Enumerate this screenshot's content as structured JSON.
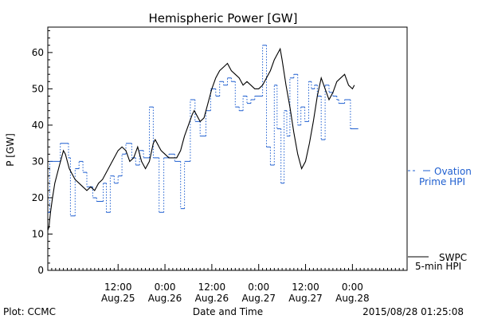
{
  "chart_data": {
    "type": "line",
    "title": "Hemispheric Power [GW]",
    "xlabel": "Date and Time",
    "ylabel": "P [GW]",
    "ylim": [
      0,
      67
    ],
    "yticks": [
      0,
      10,
      20,
      30,
      40,
      50,
      60
    ],
    "xlim": [
      0,
      92
    ],
    "x_unit": "hours since Aug.24 18:00",
    "xticks": [
      {
        "x": 18,
        "time": "12:00",
        "date": "Aug.25"
      },
      {
        "x": 30,
        "time": "0:00",
        "date": "Aug.26"
      },
      {
        "x": 42,
        "time": "12:00",
        "date": "Aug.26"
      },
      {
        "x": 54,
        "time": "0:00",
        "date": "Aug.27"
      },
      {
        "x": 66,
        "time": "12:00",
        "date": "Aug.27"
      },
      {
        "x": 78,
        "time": "0:00",
        "date": "Aug.28"
      }
    ],
    "grid": false,
    "footer_left": "Plot: CCMC",
    "footer_right": "2015/08/28 01:25:08",
    "series": [
      {
        "name": "Ovation Prime HPI",
        "legend_lines": [
          "Ovation",
          "Prime HPI"
        ],
        "color": "#1f5fd0",
        "style": "dotted-step",
        "x": [
          0,
          0.5,
          3.2,
          5.3,
          5.8,
          7.0,
          8.0,
          9.0,
          10.0,
          11.5,
          12.5,
          14.2,
          15.0,
          16.0,
          17.0,
          18.0,
          19.0,
          20.0,
          21.5,
          22.5,
          23.5,
          24.5,
          26.0,
          27.0,
          28.5,
          29.7,
          31.0,
          32.5,
          34.0,
          35.0,
          36.5,
          37.7,
          39.0,
          40.5,
          41.7,
          43.0,
          44.0,
          45.0,
          46.0,
          47.0,
          48.0,
          49.0,
          50.0,
          51.0,
          52.0,
          53.0,
          54.0,
          55.0,
          56.0,
          57.0,
          58.0,
          58.7,
          59.7,
          60.5,
          61.2,
          62.0,
          63.0,
          64.0,
          64.8,
          65.8,
          66.8,
          67.5,
          68.3,
          69.0,
          70.0,
          71.0,
          72.0,
          73.0,
          74.0,
          74.5,
          76.0,
          77.5,
          78.5
        ],
        "y": [
          16,
          30,
          35,
          31,
          15,
          28,
          30,
          27,
          23,
          20,
          19,
          24,
          16,
          26,
          24,
          26,
          32,
          35,
          31,
          29,
          33,
          31,
          45,
          31,
          16,
          31,
          32,
          30,
          17,
          30,
          47,
          41,
          37,
          44,
          50,
          48,
          52,
          51,
          53,
          52,
          45,
          44,
          48,
          46,
          47,
          48,
          48,
          62,
          34,
          29,
          51,
          39,
          24,
          44,
          37,
          53,
          54,
          40,
          45,
          41,
          52,
          50,
          51,
          48,
          36,
          51,
          49,
          48,
          47,
          46,
          47,
          39,
          39
        ]
      },
      {
        "name": "SWPC 5-min HPI",
        "legend_lines": [
          "SWPC",
          "5-min HPI"
        ],
        "color": "#000000",
        "style": "solid",
        "x": [
          0.0,
          0.3,
          0.7,
          1.2,
          1.8,
          2.5,
          3.0,
          3.5,
          4.0,
          4.5,
          5.0,
          5.5,
          6.0,
          7.0,
          8.0,
          9.0,
          10.0,
          11.0,
          12.0,
          13.0,
          14.0,
          15.0,
          16.0,
          17.0,
          18.0,
          19.0,
          20.0,
          21.0,
          22.0,
          23.0,
          24.0,
          25.0,
          26.0,
          27.0,
          27.5,
          28.0,
          28.5,
          29.0,
          30.0,
          31.0,
          32.0,
          33.0,
          34.0,
          34.5,
          35.0,
          36.0,
          37.0,
          37.5,
          38.0,
          39.0,
          40.0,
          41.0,
          42.0,
          43.0,
          44.0,
          45.0,
          46.0,
          47.0,
          48.0,
          49.0,
          50.0,
          51.0,
          52.0,
          53.0,
          54.0,
          55.0,
          56.0,
          57.0,
          58.0,
          59.0,
          59.5,
          60.0,
          61.0,
          62.0,
          63.0,
          64.0,
          65.0,
          66.0,
          67.0,
          68.0,
          69.0,
          70.0,
          71.0,
          72.0,
          73.0,
          74.0,
          75.0,
          76.0,
          77.0,
          78.0,
          78.5
        ],
        "y": [
          11,
          12,
          16,
          20,
          24,
          27,
          29,
          31,
          33,
          32,
          30,
          28,
          27,
          25,
          24,
          23,
          22,
          23,
          22,
          24,
          25,
          27,
          29,
          31,
          33,
          34,
          33,
          30,
          31,
          34,
          30,
          28,
          30,
          35,
          36,
          35,
          34,
          33,
          32,
          31,
          31,
          31,
          33,
          35,
          37,
          40,
          43,
          44,
          43,
          41,
          42,
          46,
          50,
          53,
          55,
          56,
          57,
          55,
          54,
          53,
          51,
          52,
          51,
          50,
          50,
          51,
          53,
          55,
          58,
          60,
          61,
          58,
          51,
          45,
          38,
          32,
          28,
          30,
          35,
          41,
          48,
          53,
          50,
          47,
          49,
          52,
          53,
          54,
          51,
          50,
          51
        ]
      }
    ]
  }
}
